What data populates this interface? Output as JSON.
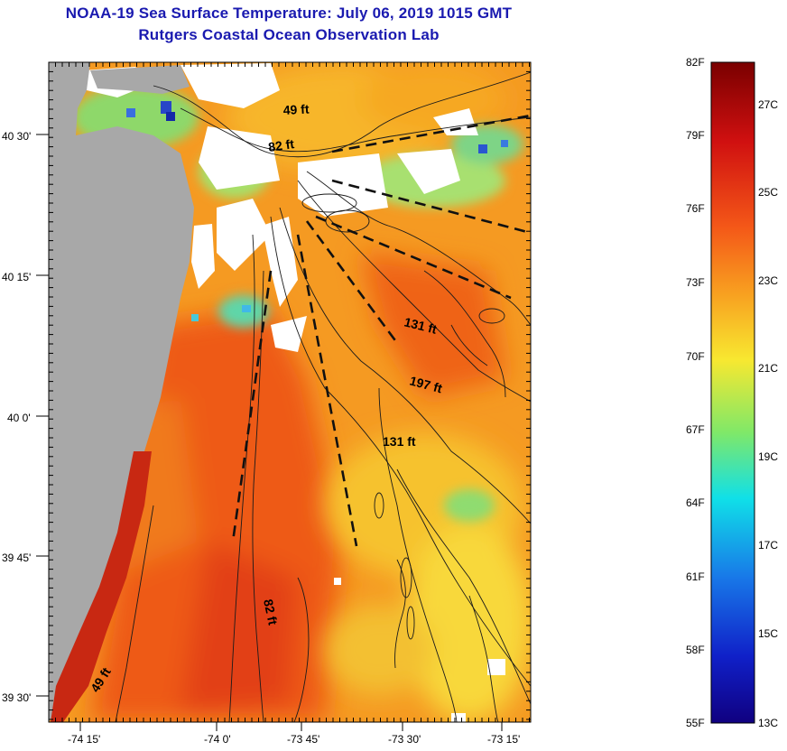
{
  "title": {
    "line1": "NOAA-19 Sea Surface Temperature:  July 06, 2019 1015 GMT",
    "line2": "Rutgers Coastal Ocean Observation Lab"
  },
  "map": {
    "lat_ticks": [
      "40 30'",
      "40 15'",
      "40 0'",
      "39 45'",
      "39 30'"
    ],
    "lon_ticks": [
      "-74 15'",
      "-74 0'",
      "-73 45'",
      "-73 30'",
      "-73 15'"
    ],
    "depth_labels": [
      "49 ft",
      "82 ft",
      "131 ft",
      "197 ft",
      "131 ft",
      "82 ft",
      "49 ft"
    ],
    "colors": {
      "land": "#a8a8a8",
      "cloud": "#ffffff",
      "warm": "#f06a14",
      "mid": "#f8a624",
      "cool": "#f8d83a"
    }
  },
  "colorbar": {
    "f_labels": [
      "82F",
      "79F",
      "76F",
      "73F",
      "70F",
      "67F",
      "64F",
      "61F",
      "58F",
      "55F"
    ],
    "c_labels": [
      "27C",
      "25C",
      "23C",
      "21C",
      "19C",
      "17C",
      "15C",
      "13C"
    ]
  }
}
